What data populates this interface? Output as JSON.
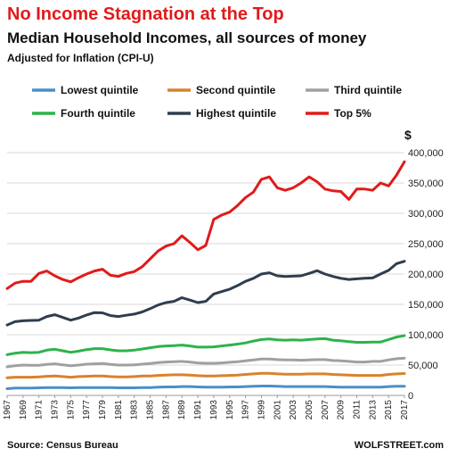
{
  "chart_data": {
    "type": "line",
    "title": "No Income Stagnation at the Top",
    "subtitle": "Median Household Incomes, all sources of money",
    "note": "Adjusted for Inflation (CPI-U)",
    "ylabel_unit": "$",
    "source": "Source: Census Bureau",
    "credit": "WOLFSTREET.com",
    "ylim": [
      0,
      400000
    ],
    "y_ticks": [
      0,
      50000,
      100000,
      150000,
      200000,
      250000,
      300000,
      350000,
      400000
    ],
    "y_tick_labels": [
      "0",
      "50,000",
      "100,000",
      "150,000",
      "200,000",
      "250,000",
      "300,000",
      "350,000",
      "400,000"
    ],
    "x_tick_labels": [
      "1967",
      "1969",
      "1971",
      "1973",
      "1975",
      "1977",
      "1979",
      "1981",
      "1983",
      "1985",
      "1987",
      "1989",
      "1991",
      "1993",
      "1995",
      "1997",
      "1999",
      "2001",
      "2003",
      "2005",
      "2007",
      "2009",
      "2011",
      "2013",
      "2015",
      "2017"
    ],
    "grid": "horizontal",
    "legend_position": "top",
    "x": [
      1967,
      1968,
      1969,
      1970,
      1971,
      1972,
      1973,
      1974,
      1975,
      1976,
      1977,
      1978,
      1979,
      1980,
      1981,
      1982,
      1983,
      1984,
      1985,
      1986,
      1987,
      1988,
      1989,
      1990,
      1991,
      1992,
      1993,
      1994,
      1995,
      1996,
      1997,
      1998,
      1999,
      2000,
      2001,
      2002,
      2003,
      2004,
      2005,
      2006,
      2007,
      2008,
      2009,
      2010,
      2011,
      2012,
      2013,
      2014,
      2015,
      2016,
      2017
    ],
    "series": [
      {
        "name": "Lowest quintile",
        "color": "#4a8fc9",
        "values": [
          11000,
          12000,
          12000,
          12000,
          12500,
          13000,
          13000,
          13000,
          12500,
          13000,
          13000,
          13000,
          13000,
          13000,
          12500,
          12500,
          12500,
          13000,
          13000,
          13500,
          14000,
          14000,
          14500,
          14500,
          14000,
          13500,
          13500,
          13500,
          14000,
          14000,
          14500,
          15000,
          15500,
          15500,
          15000,
          14500,
          14500,
          14500,
          14500,
          14500,
          14500,
          14000,
          13500,
          13500,
          13500,
          13500,
          13500,
          13500,
          14500,
          15000,
          15000
        ]
      },
      {
        "name": "Second quintile",
        "color": "#d9822b",
        "values": [
          29000,
          30000,
          30000,
          30000,
          30500,
          31500,
          32000,
          31000,
          30000,
          31000,
          31500,
          32000,
          32000,
          31000,
          30500,
          30500,
          31000,
          32000,
          32000,
          33000,
          33500,
          34000,
          34000,
          33500,
          32500,
          32000,
          32000,
          32500,
          33000,
          33500,
          34500,
          35500,
          36500,
          36500,
          35500,
          35000,
          35000,
          35000,
          35500,
          35500,
          35500,
          34500,
          34000,
          33500,
          33000,
          33000,
          33000,
          33000,
          34500,
          35500,
          36000
        ]
      },
      {
        "name": "Third quintile",
        "color": "#a0a0a0",
        "values": [
          47000,
          49000,
          50000,
          49500,
          49500,
          51000,
          52000,
          50500,
          49000,
          50000,
          51500,
          52000,
          52500,
          51000,
          50000,
          50000,
          50500,
          51500,
          52500,
          54000,
          55000,
          55500,
          56000,
          55000,
          53500,
          53000,
          53000,
          53500,
          54500,
          55500,
          57000,
          58500,
          60000,
          60000,
          59000,
          58500,
          58500,
          58000,
          58500,
          59000,
          59000,
          57500,
          57000,
          56000,
          55000,
          55000,
          56000,
          56000,
          58500,
          60500,
          61500
        ]
      },
      {
        "name": "Fourth quintile",
        "color": "#2db34a",
        "values": [
          67000,
          69500,
          71000,
          70500,
          71000,
          74500,
          76000,
          73500,
          71000,
          73000,
          75500,
          77000,
          77000,
          75000,
          73500,
          73500,
          74500,
          76500,
          78500,
          80500,
          81500,
          82000,
          83000,
          81500,
          79500,
          79500,
          80000,
          81500,
          83000,
          84500,
          86500,
          89500,
          92000,
          93000,
          91500,
          91000,
          91500,
          91000,
          92000,
          93000,
          93500,
          91000,
          90000,
          88500,
          87500,
          87500,
          88000,
          88000,
          92000,
          96000,
          98500
        ]
      },
      {
        "name": "Highest quintile",
        "color": "#2f3e4e",
        "values": [
          116000,
          121500,
          123000,
          123500,
          124000,
          130000,
          133000,
          128500,
          124000,
          127500,
          132500,
          136500,
          136000,
          131500,
          130000,
          132000,
          134000,
          137500,
          143000,
          149000,
          153000,
          155000,
          161000,
          157000,
          153000,
          155000,
          167000,
          171000,
          175000,
          181000,
          188000,
          193000,
          200000,
          202000,
          197000,
          196000,
          196500,
          197000,
          201000,
          205500,
          200000,
          196000,
          193000,
          191000,
          192000,
          193000,
          193500,
          200000,
          206000,
          217000,
          221000
        ]
      },
      {
        "name": "Top 5%",
        "color": "#e01b1b",
        "values": [
          176000,
          185000,
          188000,
          188000,
          201000,
          205000,
          197000,
          191000,
          187000,
          194000,
          200000,
          205000,
          208000,
          198000,
          196000,
          201000,
          204000,
          212000,
          225000,
          238000,
          246000,
          250000,
          263000,
          252000,
          240000,
          247000,
          290000,
          297000,
          302000,
          313000,
          326000,
          335000,
          356000,
          360000,
          342000,
          338000,
          342000,
          350000,
          360000,
          352000,
          340000,
          337000,
          336000,
          323000,
          340000,
          340000,
          338000,
          350000,
          345000,
          363000,
          385000
        ]
      }
    ]
  }
}
